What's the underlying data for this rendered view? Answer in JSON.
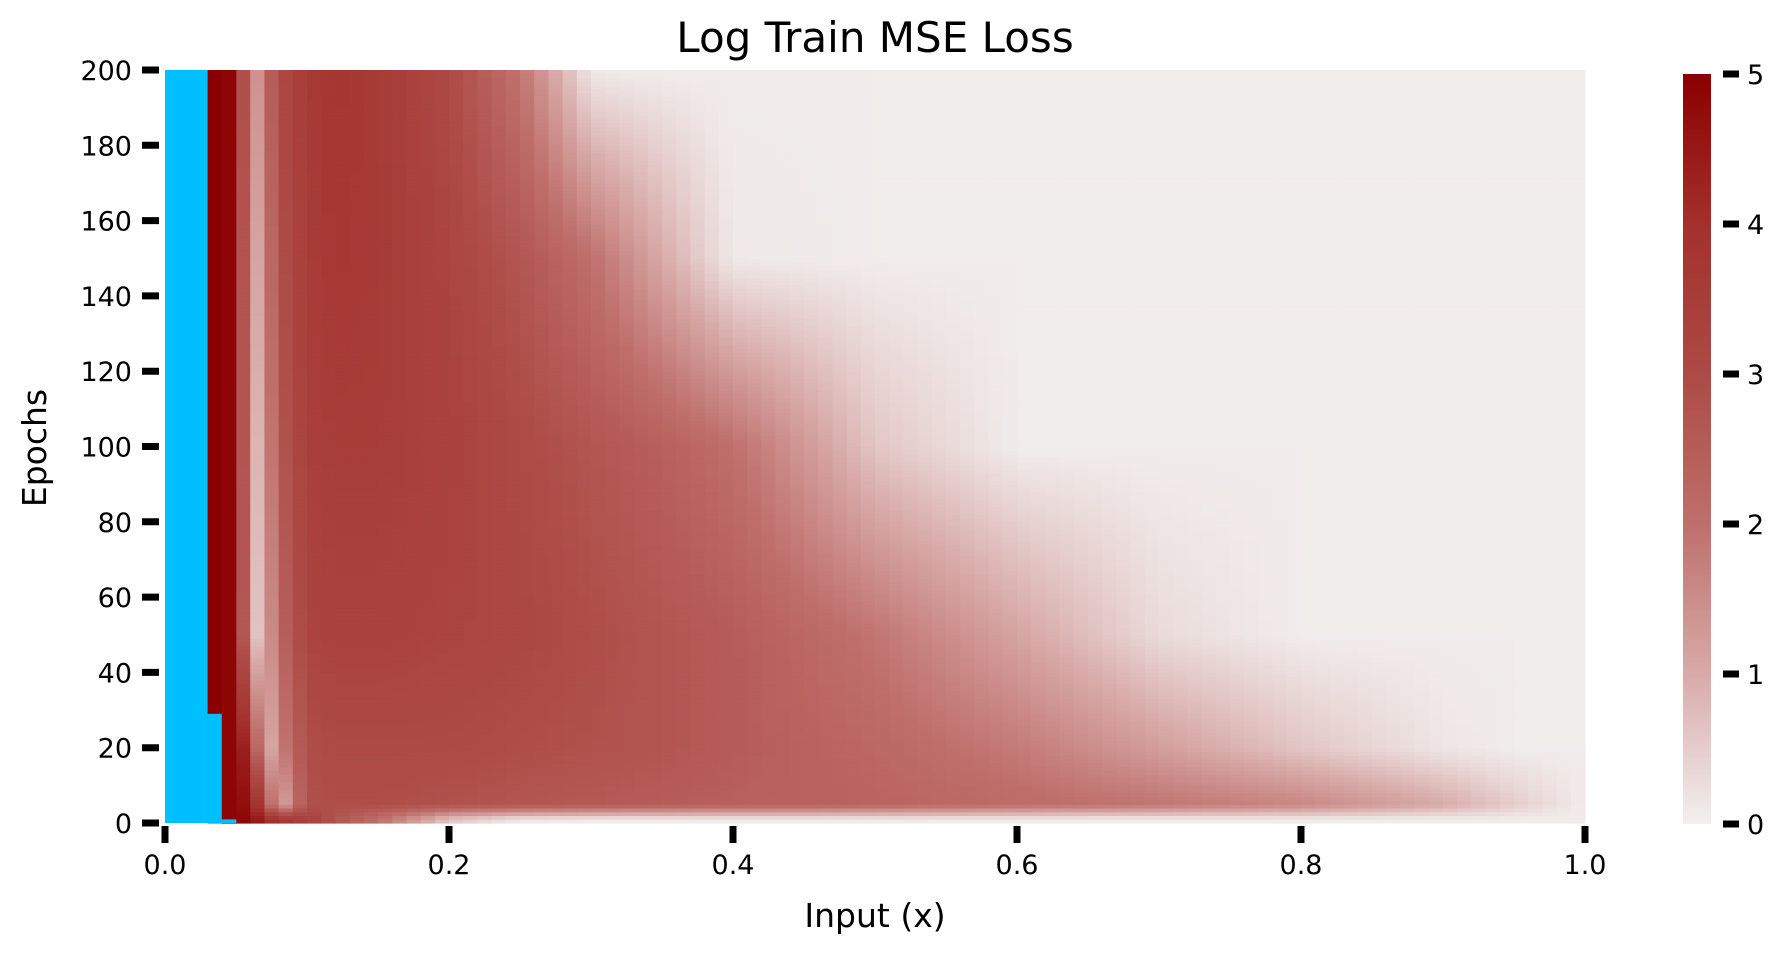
{
  "chart_data": {
    "type": "heatmap",
    "title": "Log Train MSE Loss",
    "xlabel": "Input (x)",
    "ylabel": "Epochs",
    "xlim": [
      0.0,
      1.0
    ],
    "ylim": [
      0,
      200
    ],
    "x_ticks": [
      "0.0",
      "0.2",
      "0.4",
      "0.6",
      "0.8",
      "1.0"
    ],
    "y_ticks": [
      "0",
      "20",
      "40",
      "60",
      "80",
      "100",
      "120",
      "140",
      "160",
      "180",
      "200"
    ],
    "colorbar": {
      "range": [
        0,
        5
      ],
      "ticks": [
        "0",
        "1",
        "2",
        "3",
        "4",
        "5"
      ],
      "colors": [
        "#f2f0ef",
        "#d8aaa8",
        "#bf6f6b",
        "#ad4a45",
        "#a3302c",
        "#8a0000"
      ]
    },
    "special_regions": [
      {
        "x": [
          0.0,
          0.03
        ],
        "epochs": [
          0,
          200
        ],
        "color": "#00bfff"
      },
      {
        "x": [
          0.03,
          0.04
        ],
        "epochs": [
          0,
          29
        ],
        "color": "#00bfff"
      },
      {
        "x": [
          0.04,
          0.05
        ],
        "epochs": [
          0,
          1
        ],
        "color": "#00bfff"
      },
      {
        "x": [
          0.03,
          0.04
        ],
        "epochs": [
          29,
          200
        ],
        "value": 5
      },
      {
        "x": [
          0.04,
          0.05
        ],
        "epochs": [
          1,
          200
        ],
        "value": 4.9
      }
    ],
    "profiles": {
      "x": [
        0.0,
        0.03,
        0.04,
        0.05,
        0.06,
        0.07,
        0.08,
        0.1,
        0.12,
        0.15,
        0.2,
        0.25,
        0.3,
        0.35,
        0.4,
        0.5,
        0.6,
        0.7,
        0.8,
        0.9,
        0.95,
        1.0
      ],
      "rows": [
        {
          "epoch": 200,
          "values": [
            0,
            0,
            5,
            4.9,
            0.8,
            2.0,
            3.0,
            3.6,
            3.8,
            3.6,
            3.0,
            1.9,
            0.1,
            0.05,
            0.05,
            0.05,
            0.05,
            0.05,
            0.05,
            0.05,
            0.05,
            0.05
          ]
        },
        {
          "epoch": 150,
          "values": [
            0,
            0,
            5,
            4.9,
            0.6,
            1.6,
            2.8,
            3.5,
            3.7,
            3.6,
            3.2,
            2.7,
            2.0,
            1.0,
            0.1,
            0.05,
            0.05,
            0.05,
            0.05,
            0.05,
            0.05,
            0.05
          ]
        },
        {
          "epoch": 100,
          "values": [
            0,
            0,
            5,
            4.9,
            0.5,
            1.2,
            2.6,
            3.4,
            3.5,
            3.5,
            3.3,
            3.0,
            2.7,
            2.4,
            2.0,
            0.6,
            0.05,
            0.05,
            0.05,
            0.05,
            0.05,
            0.05
          ]
        },
        {
          "epoch": 50,
          "values": [
            0,
            0,
            5,
            4.9,
            0.4,
            0.9,
            2.2,
            3.2,
            3.3,
            3.3,
            3.2,
            3.1,
            2.9,
            2.7,
            2.5,
            1.9,
            1.1,
            0.3,
            0.05,
            0.05,
            0.05,
            0.05
          ]
        },
        {
          "epoch": 20,
          "values": [
            0,
            0,
            5,
            4.9,
            3.8,
            0.6,
            1.6,
            2.9,
            3.0,
            3.0,
            3.0,
            2.9,
            2.8,
            2.7,
            2.5,
            2.2,
            1.8,
            1.2,
            0.6,
            0.15,
            0.05,
            0.05
          ]
        },
        {
          "epoch": 5,
          "values": [
            0,
            0,
            5,
            4.9,
            4.5,
            3.2,
            0.8,
            2.8,
            2.9,
            2.9,
            2.8,
            2.7,
            2.6,
            2.5,
            2.4,
            2.3,
            2.1,
            1.9,
            1.6,
            1.0,
            0.5,
            0.05
          ]
        },
        {
          "epoch": 1,
          "values": [
            0,
            0,
            5,
            4.9,
            4.8,
            4.2,
            3.8,
            3.4,
            2.7,
            2.0,
            0.6,
            0.1,
            0.05,
            0.05,
            0.05,
            0.05,
            0.05,
            0.05,
            0.05,
            0.05,
            0.05,
            0.05
          ]
        },
        {
          "epoch": 0,
          "values": [
            0,
            0,
            5,
            4.9,
            4.8,
            4.2,
            3.8,
            3.4,
            2.7,
            2.0,
            0.6,
            0.1,
            0.05,
            0.05,
            0.05,
            0.05,
            0.05,
            0.05,
            0.05,
            0.05,
            0.05,
            0.05
          ]
        }
      ]
    },
    "grid": false,
    "legend": "none"
  }
}
